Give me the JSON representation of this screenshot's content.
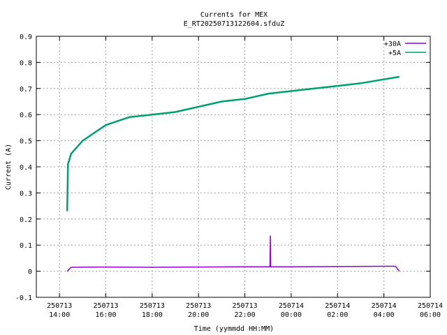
{
  "chart_data": {
    "type": "line",
    "title": "Currents for MEX",
    "subtitle": "E_RT20250713122604.sfduZ",
    "xlabel": "Time (yymmdd HH:MM)",
    "ylabel": "Current (A)",
    "xlim": [
      "2025-07-13 13:00",
      "2025-07-14 06:00"
    ],
    "ylim": [
      -0.1,
      0.9
    ],
    "grid": true,
    "legend_position": "top-right",
    "yticks": [
      "-0.1",
      "0",
      "0.1",
      "0.2",
      "0.3",
      "0.4",
      "0.5",
      "0.6",
      "0.7",
      "0.8",
      "0.9"
    ],
    "xticks": [
      {
        "date": "250713",
        "time": "14:00"
      },
      {
        "date": "250713",
        "time": "16:00"
      },
      {
        "date": "250713",
        "time": "18:00"
      },
      {
        "date": "250713",
        "time": "20:00"
      },
      {
        "date": "250713",
        "time": "22:00"
      },
      {
        "date": "250714",
        "time": "00:00"
      },
      {
        "date": "250714",
        "time": "02:00"
      },
      {
        "date": "250714",
        "time": "04:00"
      },
      {
        "date": "250714",
        "time": "06:00"
      }
    ],
    "series": [
      {
        "name": "+30A",
        "color": "#9400d3",
        "points": [
          [
            "2025-07-13 14:20",
            0.0
          ],
          [
            "2025-07-13 14:30",
            0.015
          ],
          [
            "2025-07-13 16:00",
            0.016
          ],
          [
            "2025-07-13 18:00",
            0.015
          ],
          [
            "2025-07-13 20:00",
            0.016
          ],
          [
            "2025-07-13 22:00",
            0.017
          ],
          [
            "2025-07-13 23:05",
            0.017
          ],
          [
            "2025-07-13 23:06",
            0.135
          ],
          [
            "2025-07-13 23:07",
            0.017
          ],
          [
            "2025-07-14 00:00",
            0.017
          ],
          [
            "2025-07-14 02:00",
            0.018
          ],
          [
            "2025-07-14 04:00",
            0.019
          ],
          [
            "2025-07-14 04:30",
            0.019
          ],
          [
            "2025-07-14 04:40",
            0.0
          ]
        ]
      },
      {
        "name": "+5A",
        "color": "#009e73",
        "points": [
          [
            "2025-07-13 14:20",
            0.23
          ],
          [
            "2025-07-13 14:22",
            0.41
          ],
          [
            "2025-07-13 14:30",
            0.45
          ],
          [
            "2025-07-13 15:00",
            0.5
          ],
          [
            "2025-07-13 15:30",
            0.53
          ],
          [
            "2025-07-13 16:00",
            0.56
          ],
          [
            "2025-07-13 17:00",
            0.59
          ],
          [
            "2025-07-13 18:00",
            0.6
          ],
          [
            "2025-07-13 19:00",
            0.61
          ],
          [
            "2025-07-13 20:00",
            0.63
          ],
          [
            "2025-07-13 21:00",
            0.65
          ],
          [
            "2025-07-13 22:00",
            0.66
          ],
          [
            "2025-07-13 23:00",
            0.68
          ],
          [
            "2025-07-14 00:00",
            0.69
          ],
          [
            "2025-07-14 01:00",
            0.7
          ],
          [
            "2025-07-14 02:00",
            0.71
          ],
          [
            "2025-07-14 03:00",
            0.72
          ],
          [
            "2025-07-14 04:00",
            0.735
          ],
          [
            "2025-07-14 04:40",
            0.745
          ]
        ]
      }
    ]
  }
}
